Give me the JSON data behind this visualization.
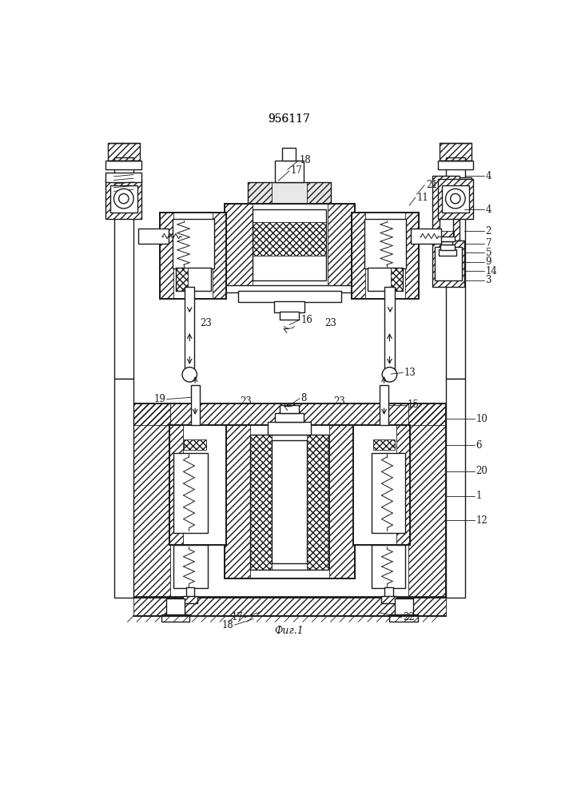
{
  "title": "956117",
  "fig_label": "Фиг.1",
  "bg_color": "#ffffff",
  "line_color": "#1a1a1a",
  "title_fontsize": 10,
  "label_fontsize": 8.5,
  "fig_label_fontsize": 9
}
